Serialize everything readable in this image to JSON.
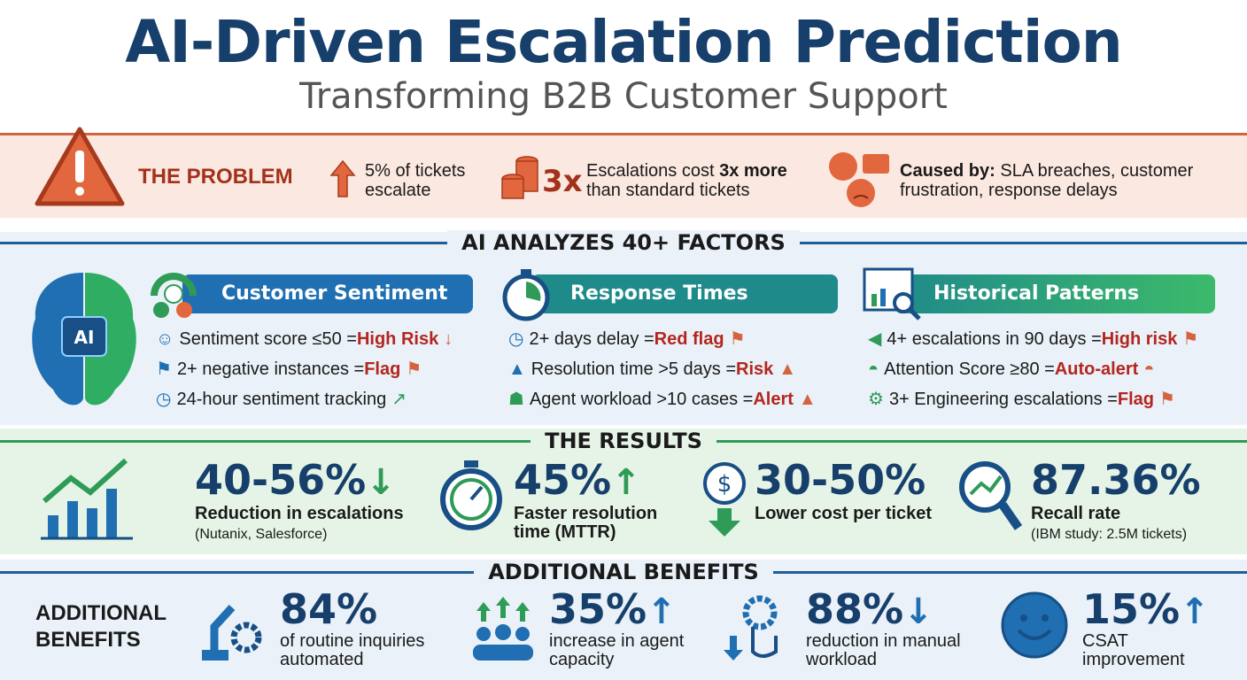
{
  "header": {
    "title": "AI-Driven Escalation Prediction",
    "subtitle": "Transforming B2B Customer Support"
  },
  "problem": {
    "label": "THE PROBLEM",
    "stat1": "5% of tickets escalate",
    "stat2_big": "3x",
    "stat2_a": "Escalations cost ",
    "stat2_b": "3x more",
    "stat2_c": " than standard tickets",
    "cause_b": "Caused by:",
    "cause_text": " SLA breaches, customer frustration, response delays",
    "icons": [
      "warning-icon",
      "arrow-up-icon",
      "coins-icon",
      "clock-chat-angry-icon"
    ]
  },
  "factors": {
    "heading": "AI ANALYZES 40+ FACTORS",
    "columns": [
      {
        "title": "Customer Sentiment",
        "color": "#1f6fb2",
        "items": [
          {
            "text": "Sentiment score ≤50 = ",
            "flag": "High Risk"
          },
          {
            "text": "2+ negative instances = ",
            "flag": "Flag"
          },
          {
            "text": "24-hour sentiment tracking",
            "flag": ""
          }
        ]
      },
      {
        "title": "Response Times",
        "color": "#1f8a8a",
        "items": [
          {
            "text": "2+ days delay = ",
            "flag": "Red flag"
          },
          {
            "text": "Resolution time >5 days = ",
            "flag": "Risk"
          },
          {
            "text": "Agent workload >10 cases = ",
            "flag": "Alert"
          }
        ]
      },
      {
        "title": "Historical Patterns",
        "color": "#2fae63",
        "items": [
          {
            "text": "4+ escalations in 90 days = ",
            "flag": "High risk"
          },
          {
            "text": "Attention Score ≥80 = ",
            "flag": "Auto-alert"
          },
          {
            "text": "3+ Engineering escalations = ",
            "flag": "Flag"
          }
        ]
      }
    ]
  },
  "results": {
    "heading": "THE RESULTS",
    "items": [
      {
        "value": "40-56%",
        "label": "Reduction in escalations",
        "note": "(Nutanix, Salesforce)",
        "trend": "down"
      },
      {
        "value": "45%",
        "label": "Faster resolution time (MTTR)",
        "note": "",
        "trend": "up"
      },
      {
        "value": "30-50%",
        "label": "Lower cost per ticket",
        "note": "",
        "trend": "down"
      },
      {
        "value": "87.36%",
        "label": "Recall rate",
        "note": "(IBM study: 2.5M tickets)",
        "trend": ""
      }
    ]
  },
  "benefits": {
    "heading": "ADDITIONAL BENEFITS",
    "side_label": "ADDITIONAL BENEFITS",
    "items": [
      {
        "value": "84%",
        "label": "of routine inquiries automated",
        "trend": ""
      },
      {
        "value": "35%",
        "label": "increase in agent capacity",
        "trend": "up"
      },
      {
        "value": "88%",
        "label": "reduction in manual workload",
        "trend": "down"
      },
      {
        "value": "15%",
        "label": "CSAT improvement",
        "trend": "up"
      }
    ]
  },
  "colors": {
    "navy": "#173f6b",
    "orange": "#d4633f",
    "red": "#b3261e",
    "green": "#2e9b57",
    "blue": "#1f6fb2"
  }
}
